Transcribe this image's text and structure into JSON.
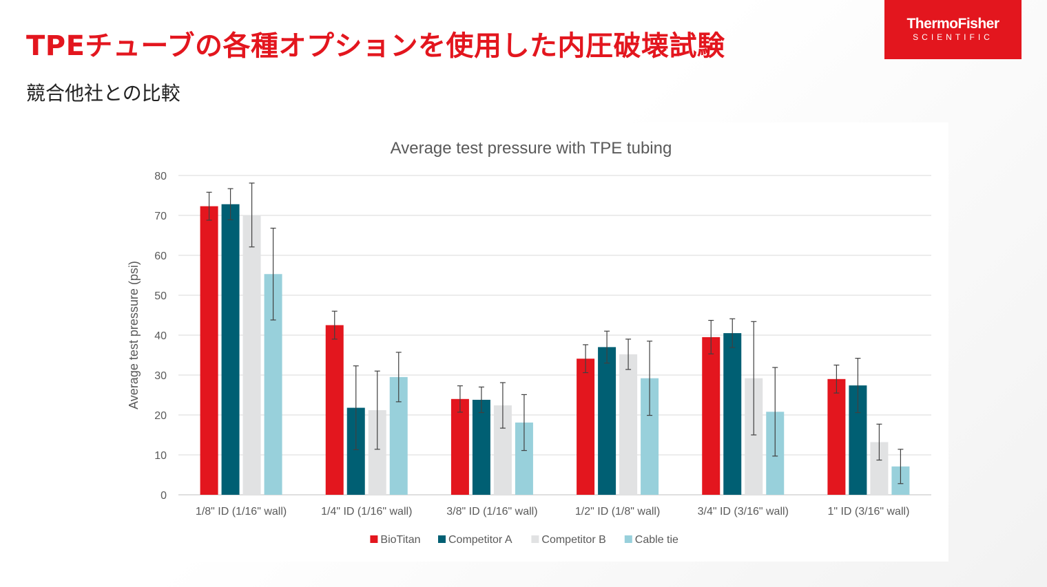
{
  "header": {
    "title": "TPEチューブの各種オプションを使用した内圧破壊試験",
    "subtitle": "競合他社との比較",
    "logo": {
      "brand": "ThermoFisher",
      "sub": "SCIENTIFIC",
      "color": "#e3161e"
    }
  },
  "chart_data": {
    "type": "bar",
    "title": "Average test pressure with TPE tubing",
    "xlabel": "",
    "ylabel": "Average test pressure (psi)",
    "ylim": [
      0,
      80
    ],
    "yticks": [
      0,
      10,
      20,
      30,
      40,
      50,
      60,
      70,
      80
    ],
    "grid": true,
    "legend_position": "bottom",
    "categories": [
      "1/8\" ID (1/16\" wall)",
      "1/4\" ID (1/16\" wall)",
      "3/8\" ID (1/16\" wall)",
      "1/2\" ID (1/8\" wall)",
      "3/4\" ID (3/16\" wall)",
      "1\" ID (3/16\" wall)"
    ],
    "series": [
      {
        "name": "BioTitan",
        "color": "#e3161e",
        "values": [
          72.3,
          42.5,
          24.0,
          34.1,
          39.5,
          29.0
        ],
        "error": [
          3.5,
          3.5,
          3.3,
          3.5,
          4.2,
          3.5
        ]
      },
      {
        "name": "Competitor A",
        "color": "#005f73",
        "values": [
          72.8,
          21.8,
          23.8,
          37.0,
          40.5,
          27.4
        ],
        "error": [
          3.9,
          10.5,
          3.2,
          4.0,
          3.6,
          6.8
        ]
      },
      {
        "name": "Competitor B",
        "color": "#e1e2e3",
        "values": [
          70.1,
          21.2,
          22.4,
          35.2,
          29.2,
          13.2
        ],
        "error": [
          8.0,
          9.8,
          5.7,
          3.8,
          14.2,
          4.5
        ]
      },
      {
        "name": "Cable tie",
        "color": "#98d0db",
        "values": [
          55.3,
          29.5,
          18.1,
          29.2,
          20.8,
          7.1
        ],
        "error": [
          11.5,
          6.2,
          7.0,
          9.3,
          11.1,
          4.3
        ]
      }
    ]
  }
}
